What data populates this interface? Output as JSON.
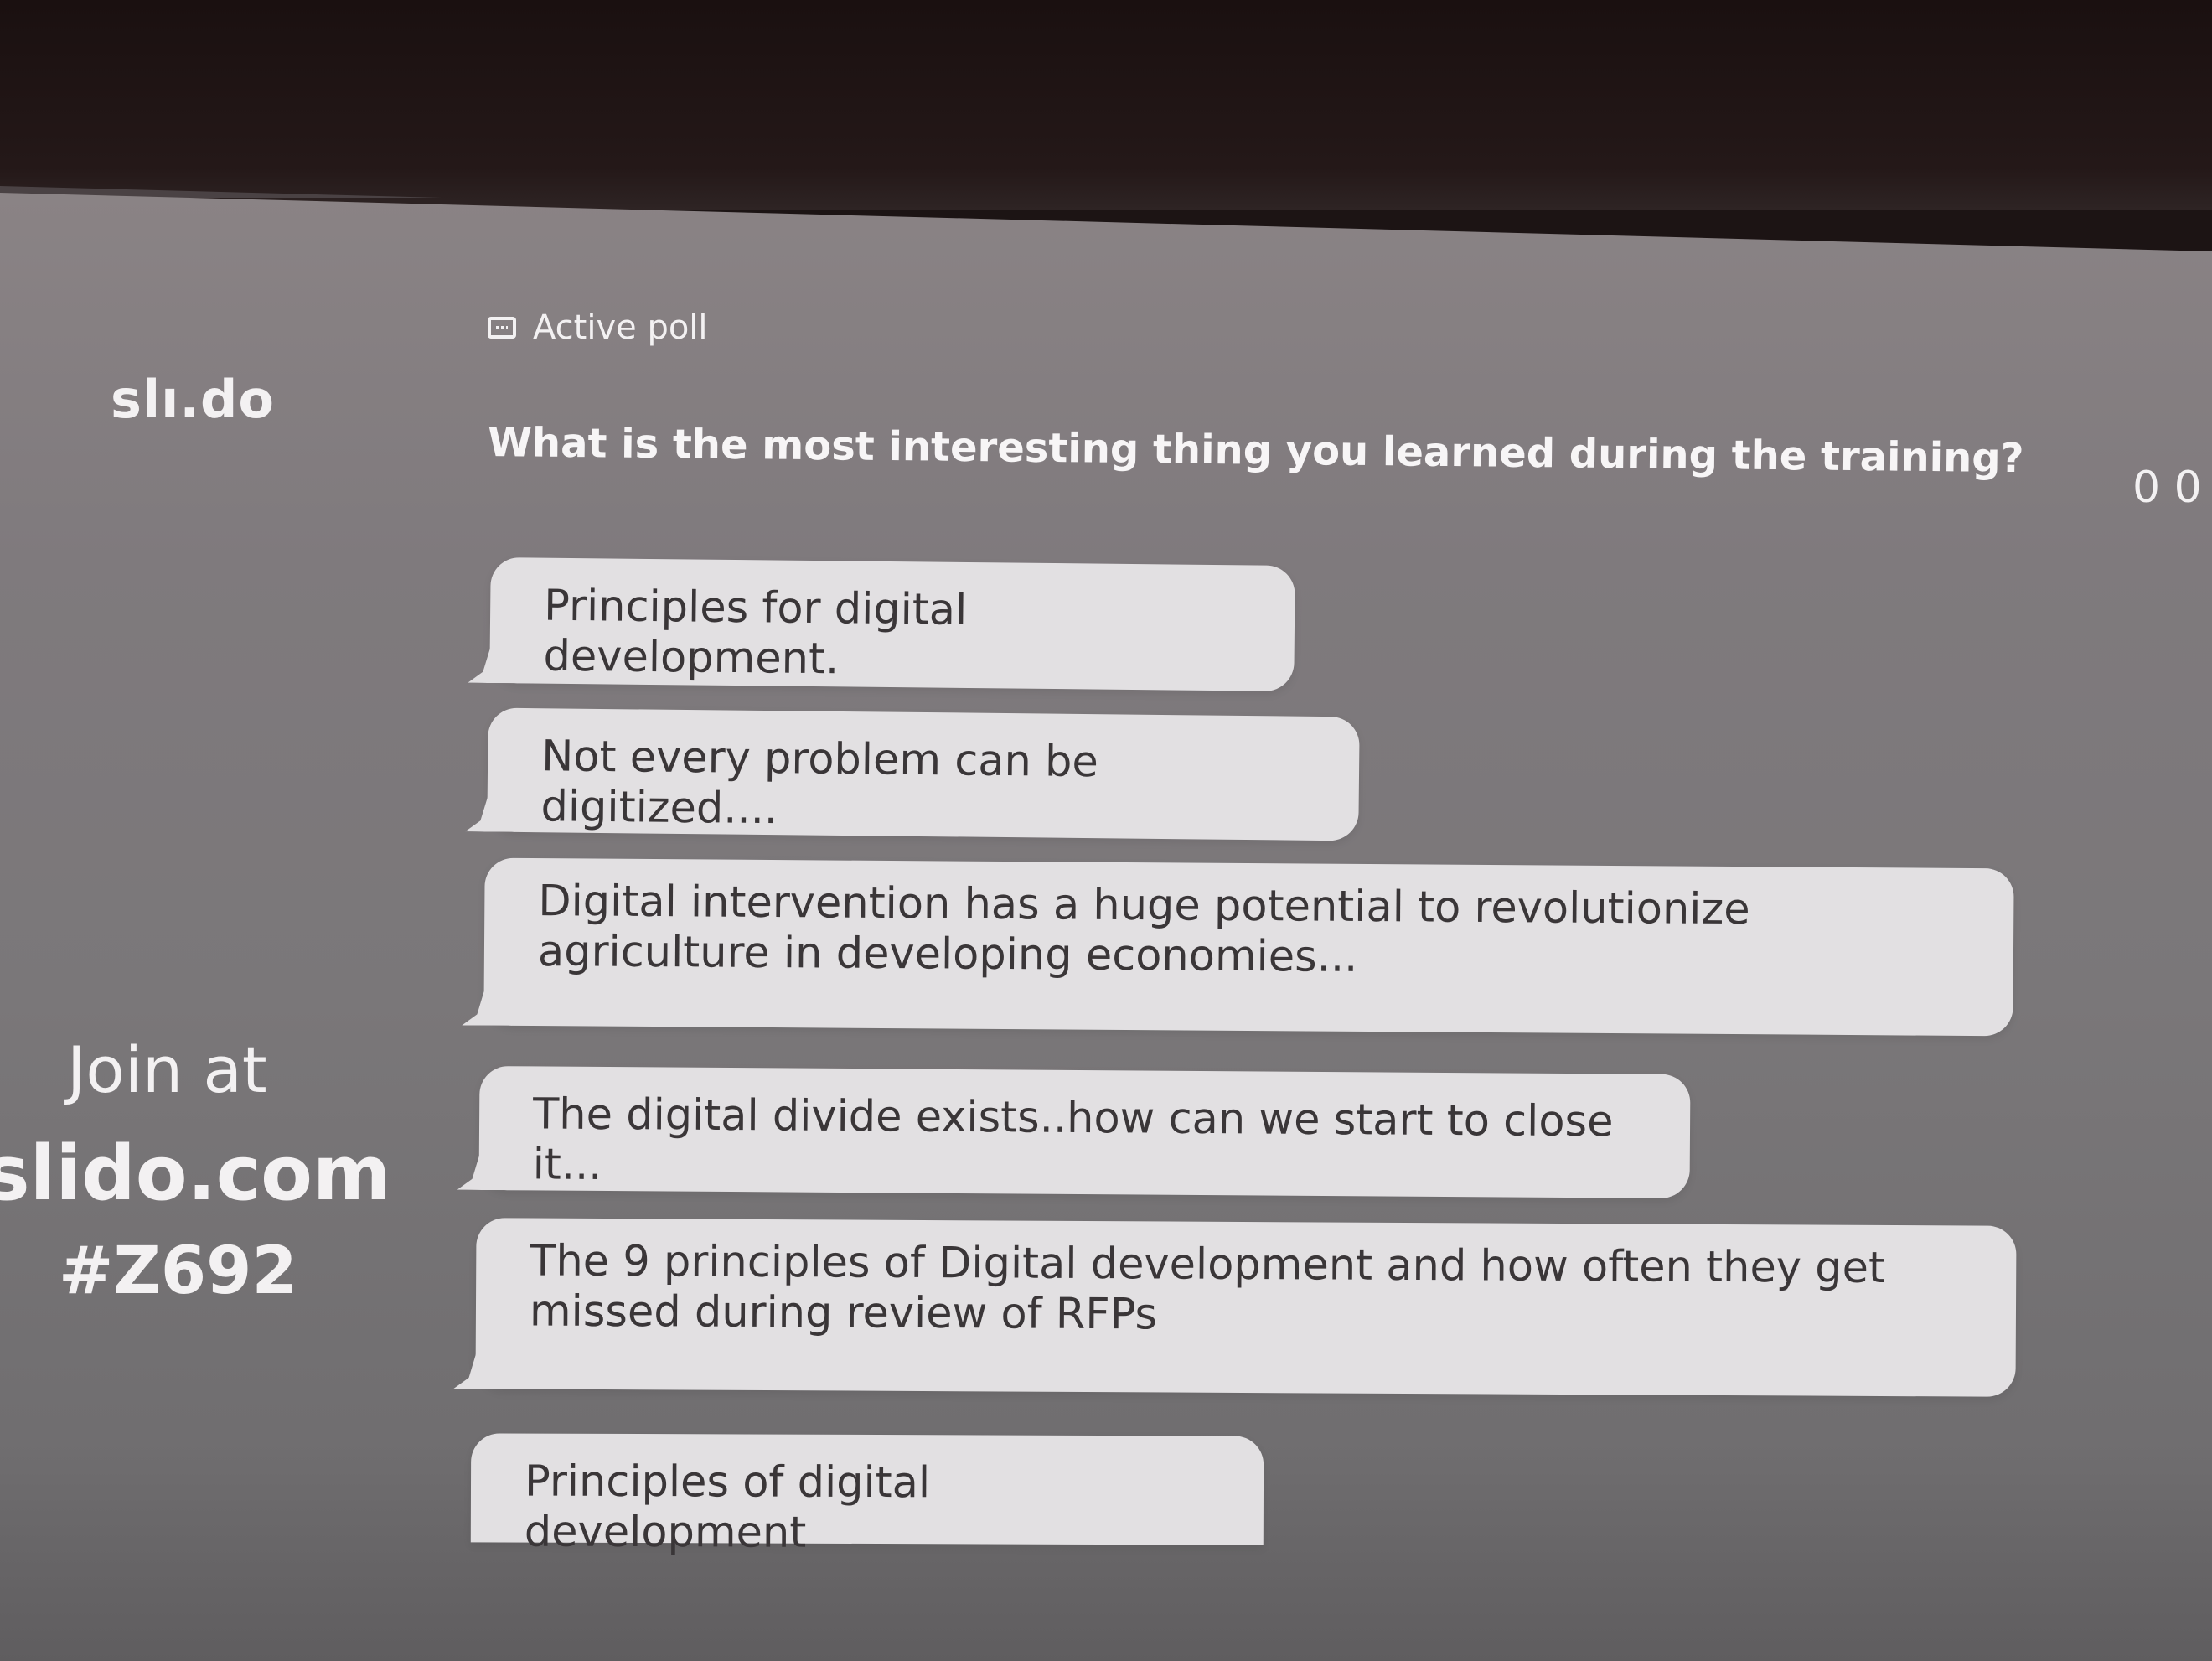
{
  "brand": {
    "logo_text": "slı.do"
  },
  "join": {
    "label": "Join at",
    "url": "slido.com",
    "code": "#Z692"
  },
  "poll": {
    "status_label": "Active poll",
    "icon": "poll-chat-icon",
    "question": "What is the most interesting thing you learned during the training?",
    "counter": "0 0"
  },
  "answers": [
    {
      "text": "Principles for digital development."
    },
    {
      "text": "Not every problem can be digitized...."
    },
    {
      "text": "Digital intervention has a huge potential to revolutionize agriculture in developing economies..."
    },
    {
      "text": "The digital divide exists..how can we start to close it..."
    },
    {
      "text": "The 9 principles of Digital development and how often they get missed during review of RFPs"
    },
    {
      "text": "Principles of digital development"
    }
  ],
  "colors": {
    "screen": "#7f7a7d",
    "bubble": "#e2e0e2",
    "text_light": "#f3f1f2",
    "text_dark": "#3a3638"
  }
}
